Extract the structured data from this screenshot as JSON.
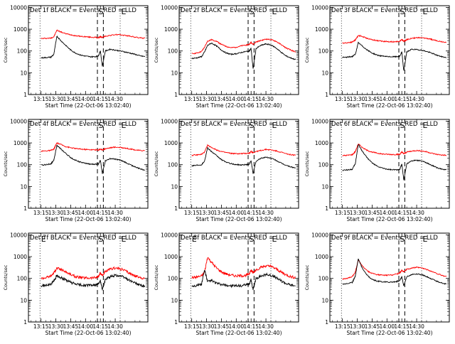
{
  "colors": {
    "events": "#000000",
    "lld": "#ff0000",
    "frame": "#000000",
    "background": "#ffffff"
  },
  "chart_data": [
    {
      "type": "line",
      "title": "Det 1f BLACK = Events, RED = LLD",
      "xlabel": "Start Time (22-Oct-06 13:02:40)",
      "ylabel": "Counts/sec",
      "x_ticks": [
        "13:15",
        "13:30",
        "13:45",
        "14:00",
        "14:15",
        "14:30"
      ],
      "y_ticks": [
        "1",
        "10",
        "100",
        "1000",
        "10000"
      ],
      "y_log": true,
      "ylim": [
        1,
        12000
      ],
      "markers": [
        {
          "label": "",
          "style": "dotted"
        },
        {
          "label": "S",
          "style": "dashed"
        },
        {
          "label": "",
          "style": "dashed"
        },
        {
          "label": "E",
          "style": "dotted"
        }
      ],
      "x_minutes": [
        0,
        5,
        10,
        13,
        16,
        20,
        25,
        30,
        35,
        40,
        45,
        50,
        55,
        58,
        60,
        62,
        65,
        70,
        75,
        80,
        85,
        90,
        95,
        100,
        105
      ],
      "series": [
        {
          "color": "lld",
          "values": [
            370,
            380,
            390,
            450,
            900,
            750,
            620,
            560,
            500,
            470,
            450,
            430,
            420,
            400,
            450,
            420,
            480,
            520,
            560,
            550,
            520,
            480,
            430,
            400,
            390
          ]
        },
        {
          "color": "events",
          "values": [
            48,
            50,
            52,
            70,
            480,
            300,
            180,
            110,
            80,
            65,
            58,
            54,
            55,
            60,
            100,
            20,
            100,
            120,
            110,
            100,
            90,
            80,
            70,
            60,
            55
          ]
        }
      ]
    },
    {
      "type": "line",
      "title": "Det 2f BLACK = Events, RED = LLD",
      "xlabel": "Start Time (22-Oct-06 13:02:40)",
      "ylabel": "Counts/sec",
      "x_ticks": [
        "13:15",
        "13:30",
        "13:45",
        "14:00",
        "14:15",
        "14:30"
      ],
      "y_ticks": [
        "1",
        "10",
        "100",
        "1000",
        "10000"
      ],
      "y_log": true,
      "ylim": [
        1,
        12000
      ],
      "markers": [
        {
          "label": "",
          "style": "dotted"
        },
        {
          "label": "S",
          "style": "dashed"
        },
        {
          "label": "",
          "style": "dashed"
        },
        {
          "label": "E",
          "style": "dotted"
        }
      ],
      "x_minutes": [
        0,
        5,
        10,
        13,
        16,
        20,
        25,
        30,
        35,
        40,
        45,
        50,
        55,
        58,
        60,
        62,
        65,
        70,
        75,
        80,
        85,
        90,
        95,
        100,
        105
      ],
      "series": [
        {
          "color": "lld",
          "values": [
            75,
            80,
            95,
            150,
            280,
            330,
            280,
            200,
            160,
            140,
            150,
            170,
            190,
            200,
            250,
            200,
            260,
            300,
            350,
            330,
            280,
            200,
            140,
            110,
            90
          ]
        },
        {
          "color": "events",
          "values": [
            45,
            48,
            55,
            90,
            180,
            230,
            170,
            110,
            80,
            70,
            75,
            85,
            95,
            100,
            130,
            15,
            130,
            180,
            210,
            190,
            140,
            90,
            60,
            48,
            40
          ]
        }
      ]
    },
    {
      "type": "line",
      "title": "Det 3f BLACK = Events, RED = LLD",
      "xlabel": "Start Time (22-Oct-06 13:02:40)",
      "ylabel": "Counts/sec",
      "x_ticks": [
        "13:15",
        "13:30",
        "13:45",
        "14:00",
        "14:15",
        "14:30"
      ],
      "y_ticks": [
        "1",
        "10",
        "100",
        "1000",
        "10000"
      ],
      "y_log": true,
      "ylim": [
        1,
        12000
      ],
      "markers": [
        {
          "label": "",
          "style": "dotted"
        },
        {
          "label": "S",
          "style": "dashed"
        },
        {
          "label": "",
          "style": "dashed"
        },
        {
          "label": "E",
          "style": "dotted"
        }
      ],
      "x_minutes": [
        0,
        5,
        10,
        13,
        16,
        20,
        25,
        30,
        35,
        40,
        45,
        50,
        55,
        58,
        60,
        62,
        65,
        70,
        75,
        80,
        85,
        90,
        95,
        100,
        105
      ],
      "series": [
        {
          "color": "lld",
          "values": [
            230,
            240,
            260,
            320,
            520,
            460,
            380,
            330,
            300,
            280,
            270,
            265,
            270,
            280,
            330,
            280,
            330,
            380,
            410,
            400,
            380,
            340,
            300,
            270,
            250
          ]
        },
        {
          "color": "events",
          "values": [
            50,
            52,
            56,
            70,
            240,
            170,
            110,
            80,
            65,
            58,
            55,
            54,
            55,
            58,
            90,
            12,
            90,
            120,
            115,
            110,
            95,
            80,
            65,
            55,
            50
          ]
        }
      ]
    },
    {
      "type": "line",
      "title": "Det 4f BLACK = Events, RED = LLD",
      "xlabel": "Start Time (22-Oct-06 13:02:40)",
      "ylabel": "Counts/sec",
      "x_ticks": [
        "13:15",
        "13:30",
        "13:45",
        "14:00",
        "14:15",
        "14:30"
      ],
      "y_ticks": [
        "1",
        "10",
        "100",
        "1000",
        "10000"
      ],
      "y_log": true,
      "ylim": [
        1,
        12000
      ],
      "markers": [
        {
          "label": "",
          "style": "dotted"
        },
        {
          "label": "S",
          "style": "dashed"
        },
        {
          "label": "",
          "style": "dashed"
        },
        {
          "label": "E",
          "style": "dotted"
        }
      ],
      "x_minutes": [
        0,
        5,
        10,
        13,
        16,
        20,
        25,
        30,
        35,
        40,
        45,
        50,
        55,
        58,
        60,
        62,
        65,
        70,
        75,
        80,
        85,
        90,
        95,
        100,
        105
      ],
      "series": [
        {
          "color": "lld",
          "values": [
            420,
            430,
            450,
            520,
            1000,
            850,
            680,
            600,
            550,
            520,
            500,
            490,
            480,
            470,
            520,
            480,
            540,
            600,
            640,
            620,
            580,
            530,
            480,
            450,
            440
          ]
        },
        {
          "color": "events",
          "values": [
            95,
            100,
            110,
            160,
            780,
            520,
            330,
            210,
            160,
            130,
            115,
            105,
            105,
            110,
            160,
            40,
            150,
            190,
            180,
            160,
            130,
            100,
            80,
            65,
            55
          ]
        }
      ]
    },
    {
      "type": "line",
      "title": "Det 5f BLACK = Events, RED = LLD",
      "xlabel": "Start Time (22-Oct-06 13:02:40)",
      "ylabel": "Counts/sec",
      "x_ticks": [
        "13:15",
        "13:30",
        "13:45",
        "14:00",
        "14:15",
        "14:30"
      ],
      "y_ticks": [
        "1",
        "10",
        "100",
        "1000",
        "10000"
      ],
      "y_log": true,
      "ylim": [
        1,
        12000
      ],
      "markers": [
        {
          "label": "",
          "style": "dotted"
        },
        {
          "label": "S",
          "style": "dashed"
        },
        {
          "label": "",
          "style": "dashed"
        },
        {
          "label": "E",
          "style": "dotted"
        }
      ],
      "x_minutes": [
        0,
        5,
        10,
        13,
        16,
        20,
        25,
        30,
        35,
        40,
        45,
        50,
        55,
        58,
        60,
        62,
        65,
        70,
        75,
        80,
        85,
        90,
        95,
        100,
        105
      ],
      "series": [
        {
          "color": "lld",
          "values": [
            270,
            280,
            300,
            380,
            780,
            620,
            480,
            400,
            360,
            330,
            320,
            320,
            330,
            340,
            400,
            360,
            400,
            450,
            500,
            480,
            430,
            380,
            320,
            290,
            270
          ]
        },
        {
          "color": "events",
          "values": [
            90,
            95,
            100,
            150,
            600,
            400,
            260,
            170,
            130,
            110,
            100,
            98,
            100,
            105,
            150,
            40,
            140,
            200,
            220,
            200,
            160,
            120,
            95,
            80,
            70
          ]
        }
      ]
    },
    {
      "type": "line",
      "title": "Det 6f BLACK = Events, RED = LLD",
      "xlabel": "Start Time (22-Oct-06 13:02:40)",
      "ylabel": "Counts/sec",
      "x_ticks": [
        "13:15",
        "13:30",
        "13:45",
        "14:00",
        "14:15",
        "14:30"
      ],
      "y_ticks": [
        "1",
        "10",
        "100",
        "1000",
        "10000"
      ],
      "y_log": true,
      "ylim": [
        1,
        12000
      ],
      "markers": [
        {
          "label": "",
          "style": "dotted"
        },
        {
          "label": "S",
          "style": "dashed"
        },
        {
          "label": "",
          "style": "dashed"
        },
        {
          "label": "E",
          "style": "dotted"
        }
      ],
      "x_minutes": [
        0,
        5,
        10,
        13,
        16,
        20,
        25,
        30,
        35,
        40,
        45,
        50,
        55,
        58,
        60,
        62,
        65,
        70,
        75,
        80,
        85,
        90,
        95,
        100,
        105
      ],
      "series": [
        {
          "color": "lld",
          "values": [
            260,
            270,
            290,
            400,
            900,
            620,
            450,
            380,
            340,
            310,
            300,
            295,
            295,
            300,
            380,
            320,
            380,
            420,
            450,
            430,
            390,
            340,
            300,
            280,
            270
          ]
        },
        {
          "color": "events",
          "values": [
            55,
            58,
            62,
            110,
            850,
            420,
            210,
            120,
            85,
            70,
            62,
            58,
            58,
            62,
            110,
            20,
            110,
            150,
            160,
            150,
            120,
            95,
            75,
            62,
            58
          ]
        }
      ]
    },
    {
      "type": "line",
      "title": "Det 7f BLACK = Events, RED = LLD",
      "xlabel": "Start Time (22-Oct-06 13:02:40)",
      "ylabel": "Counts/sec",
      "x_ticks": [
        "13:15",
        "13:30",
        "13:45",
        "14:00",
        "14:15",
        "14:30"
      ],
      "y_ticks": [
        "1",
        "10",
        "100",
        "1000",
        "10000"
      ],
      "y_log": true,
      "ylim": [
        1,
        12000
      ],
      "markers": [
        {
          "label": "E",
          "style": "dotted"
        },
        {
          "label": "S",
          "style": "dashed"
        },
        {
          "label": "",
          "style": "dashed"
        },
        {
          "label": "E",
          "style": "dotted"
        }
      ],
      "x_minutes": [
        0,
        5,
        10,
        13,
        16,
        20,
        25,
        30,
        35,
        40,
        45,
        50,
        55,
        58,
        60,
        62,
        65,
        70,
        75,
        80,
        85,
        90,
        95,
        100,
        105
      ],
      "series": [
        {
          "color": "lld",
          "values": [
            100,
            110,
            130,
            180,
            300,
            260,
            200,
            150,
            120,
            110,
            105,
            105,
            110,
            120,
            170,
            140,
            200,
            260,
            300,
            280,
            230,
            170,
            130,
            110,
            100
          ]
        },
        {
          "color": "events",
          "values": [
            45,
            48,
            55,
            80,
            130,
            110,
            85,
            65,
            55,
            50,
            48,
            48,
            50,
            55,
            80,
            30,
            90,
            120,
            140,
            130,
            105,
            80,
            60,
            50,
            45
          ]
        }
      ]
    },
    {
      "type": "line",
      "title": "Det 8f BLACK = Events, RED = LLD",
      "xlabel": "Start Time (22-Oct-06 13:02:40)",
      "ylabel": "Counts/sec",
      "x_ticks": [
        "13:15",
        "13:30",
        "13:45",
        "14:00",
        "14:15",
        "14:30"
      ],
      "y_ticks": [
        "1",
        "10",
        "100",
        "1000",
        "10000"
      ],
      "y_log": true,
      "ylim": [
        1,
        12000
      ],
      "markers": [
        {
          "label": "E",
          "style": "dotted"
        },
        {
          "label": "S",
          "style": "dashed"
        },
        {
          "label": "",
          "style": "dashed"
        },
        {
          "label": "E",
          "style": "dotted"
        }
      ],
      "x_minutes": [
        0,
        5,
        10,
        13,
        16,
        20,
        25,
        30,
        35,
        40,
        45,
        50,
        55,
        58,
        60,
        62,
        65,
        70,
        75,
        80,
        85,
        90,
        95,
        100,
        105
      ],
      "series": [
        {
          "color": "lld",
          "values": [
            110,
            115,
            130,
            200,
            950,
            550,
            300,
            200,
            160,
            140,
            130,
            130,
            140,
            160,
            240,
            180,
            250,
            320,
            380,
            350,
            280,
            200,
            150,
            120,
            110
          ]
        },
        {
          "color": "events",
          "values": [
            45,
            48,
            55,
            250,
            70,
            80,
            60,
            52,
            48,
            46,
            45,
            46,
            50,
            55,
            90,
            30,
            100,
            130,
            150,
            140,
            110,
            80,
            60,
            50,
            45
          ]
        }
      ]
    },
    {
      "type": "line",
      "title": "Det 9f BLACK = Events, RED = LLD",
      "xlabel": "Start Time (22-Oct-06 13:02:40)",
      "ylabel": "Counts/sec",
      "x_ticks": [
        "13:15",
        "13:30",
        "13:45",
        "14:00",
        "14:15",
        "14:30"
      ],
      "y_ticks": [
        "1",
        "10",
        "100",
        "1000",
        "10000"
      ],
      "y_log": true,
      "ylim": [
        1,
        12000
      ],
      "markers": [
        {
          "label": "",
          "style": "dotted"
        },
        {
          "label": "S",
          "style": "dashed"
        },
        {
          "label": "",
          "style": "dashed"
        },
        {
          "label": "E",
          "style": "dotted"
        }
      ],
      "x_minutes": [
        0,
        5,
        10,
        13,
        16,
        20,
        25,
        30,
        35,
        40,
        45,
        50,
        55,
        58,
        60,
        62,
        65,
        70,
        75,
        80,
        85,
        90,
        95,
        100,
        105
      ],
      "series": [
        {
          "color": "lld",
          "values": [
            95,
            100,
            120,
            200,
            700,
            380,
            220,
            170,
            150,
            140,
            140,
            145,
            160,
            180,
            240,
            200,
            260,
            300,
            320,
            300,
            260,
            210,
            170,
            140,
            120
          ]
        },
        {
          "color": "events",
          "values": [
            55,
            58,
            65,
            130,
            800,
            300,
            140,
            90,
            75,
            70,
            68,
            68,
            72,
            80,
            120,
            45,
            120,
            150,
            160,
            150,
            120,
            95,
            75,
            62,
            55
          ]
        }
      ]
    }
  ]
}
